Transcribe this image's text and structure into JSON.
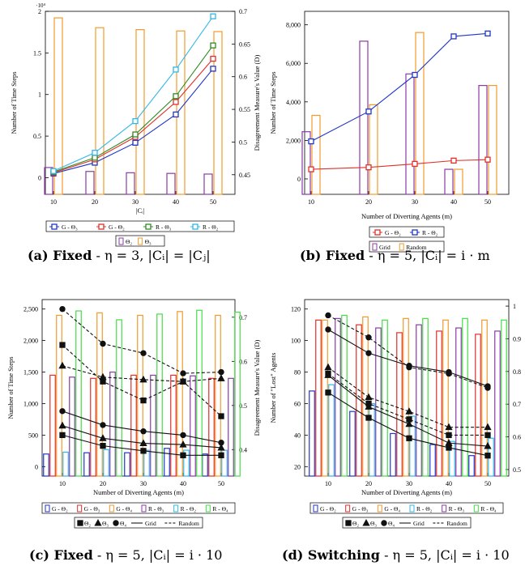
{
  "colors": {
    "blue": "#1f36c8",
    "red": "#e0302a",
    "green": "#2e8b24",
    "cyan": "#2fb7e8",
    "orange": "#f29a2b",
    "purple": "#8a3ba6",
    "bright_green": "#44dd44",
    "black": "#111111"
  },
  "captions": [
    {
      "label": "(a) Fixed",
      "rest": "- η = 3, |Cᵢ| = |Cⱼ|"
    },
    {
      "label": "(b) Fixed",
      "rest": "- η = 5, |Cᵢ| = i · m"
    },
    {
      "label": "(c) Fixed",
      "rest": "- η = 5, |Cᵢ| = i · 10"
    },
    {
      "label": "(d) Switching",
      "rest": "- η = 5, |Cᵢ| = i · 10"
    }
  ],
  "chart_data": [
    {
      "id": "a",
      "type": "bar+line",
      "categories": [
        10,
        20,
        30,
        40,
        50
      ],
      "xlabel": "|Cᵢ|",
      "ylabel": "Number of Time Steps",
      "ylabel_right": "Disagreement Measure's Value (D)",
      "y_multiplier": "·10⁴",
      "ylim": [
        -0.2,
        2.0
      ],
      "yticks": [
        0,
        0.5,
        1,
        1.5,
        2
      ],
      "ytick_labels": [
        "0",
        "0.5",
        "1",
        "1.5",
        "2"
      ],
      "y2lim": [
        0.42,
        0.7
      ],
      "y2ticks": [
        0.45,
        0.5,
        0.55,
        0.6,
        0.65,
        0.7
      ],
      "y2tick_labels": [
        "0.45",
        "0.5",
        "0.55",
        "0.6",
        "0.65",
        "0.7"
      ],
      "bars": [
        {
          "name": "Θ₂",
          "color": "purple",
          "values": [
            0.461,
            0.455,
            0.453,
            0.452,
            0.451
          ]
        },
        {
          "name": "Θ₃",
          "color": "orange",
          "values": [
            0.69,
            0.675,
            0.672,
            0.67,
            0.669
          ]
        }
      ],
      "lines": [
        {
          "name": "G - Θ₃",
          "color": "blue",
          "marker": "square",
          "values": [
            0.05,
            0.18,
            0.42,
            0.76,
            1.31
          ]
        },
        {
          "name": "G - Θ₂",
          "color": "red",
          "marker": "square",
          "values": [
            0.06,
            0.22,
            0.49,
            0.91,
            1.43
          ]
        },
        {
          "name": "R - Θ₃",
          "color": "green",
          "marker": "square",
          "values": [
            0.07,
            0.24,
            0.52,
            0.98,
            1.59
          ]
        },
        {
          "name": "R - Θ₂",
          "color": "cyan",
          "marker": "square",
          "values": [
            0.08,
            0.3,
            0.68,
            1.3,
            1.94
          ]
        }
      ],
      "legend_rows": [
        [
          "G - Θ₃",
          "G - Θ₂",
          "R - Θ₃",
          "R - Θ₂"
        ],
        [
          "Θ₂",
          "Θ₃"
        ]
      ]
    },
    {
      "id": "b",
      "type": "bar+line",
      "categories": [
        10,
        20,
        30,
        40,
        50
      ],
      "xlabel": "Number of Diverting Agents (m)",
      "ylabel": "Number of Time Steps",
      "ylim": [
        -800,
        8700
      ],
      "yticks": [
        0,
        2000,
        4000,
        6000,
        8000
      ],
      "ytick_labels": [
        "0",
        "2,000",
        "4,000",
        "6,000",
        "8,000"
      ],
      "bars": [
        {
          "name": "Grid",
          "color": "purple",
          "values": [
            2450,
            7150,
            5450,
            500,
            4850
          ]
        },
        {
          "name": "Random",
          "color": "orange",
          "values": [
            3300,
            3850,
            7600,
            500,
            4850
          ]
        }
      ],
      "lines": [
        {
          "name": "G - Θ₂",
          "color": "red",
          "marker": "square",
          "values": [
            500,
            600,
            780,
            950,
            1000
          ]
        },
        {
          "name": "R - Θ₂",
          "color": "blue",
          "marker": "square",
          "values": [
            1950,
            3500,
            5400,
            7400,
            7550
          ]
        }
      ],
      "legend_rows": [
        [
          "G - Θ₂",
          "R - Θ₂"
        ],
        [
          "Grid",
          "Random"
        ]
      ]
    },
    {
      "id": "c",
      "type": "bar+line",
      "categories": [
        10,
        20,
        30,
        40,
        50
      ],
      "xlabel": "Number of Diverting Agents (m)",
      "ylabel": "Number of Time Steps",
      "ylabel_right": "Disagreement Measure's Value (D)",
      "ylim": [
        -150,
        2650
      ],
      "yticks": [
        0,
        500,
        1000,
        1500,
        2000,
        2500
      ],
      "ytick_labels": [
        "0",
        "500",
        "1,000",
        "1,500",
        "2,000",
        "2,500"
      ],
      "y2lim": [
        0.34,
        0.74
      ],
      "y2ticks": [
        0.4,
        0.5,
        0.6,
        0.7
      ],
      "y2tick_labels": [
        "0.4",
        "0.5",
        "0.6",
        "0.7"
      ],
      "bars": [
        {
          "name": "G - Θ₂",
          "color": "blue",
          "values": [
            200,
            220,
            220,
            290,
            200
          ]
        },
        {
          "name": "G - Θ₃",
          "color": "red",
          "values": [
            1450,
            1400,
            1450,
            1450,
            1400
          ]
        },
        {
          "name": "G - Θ₄",
          "color": "orange",
          "values": [
            2400,
            2440,
            2400,
            2460,
            2400
          ]
        },
        {
          "name": "R - Θ₂",
          "color": "cyan",
          "values": [
            230,
            270,
            260,
            260,
            260
          ]
        },
        {
          "name": "R - Θ₃",
          "color": "purple",
          "values": [
            1420,
            1500,
            1450,
            1440,
            1400
          ]
        },
        {
          "name": "R - Θ₄",
          "color": "bright_green",
          "values": [
            2470,
            2330,
            2420,
            2480,
            2450
          ]
        }
      ],
      "lines": [
        {
          "name": "Grid Θ₂",
          "style": "solid",
          "marker": "square",
          "values": [
            500,
            330,
            250,
            180,
            180
          ]
        },
        {
          "name": "Grid Θ₃",
          "style": "solid",
          "marker": "triangle",
          "values": [
            650,
            450,
            370,
            350,
            300
          ]
        },
        {
          "name": "Grid Θ₄",
          "style": "solid",
          "marker": "circle",
          "values": [
            880,
            660,
            560,
            500,
            380
          ]
        },
        {
          "name": "Random Θ₂",
          "style": "dashed",
          "marker": "square",
          "values": [
            1930,
            1350,
            1050,
            1350,
            800
          ]
        },
        {
          "name": "Random Θ₃",
          "style": "dashed",
          "marker": "triangle",
          "values": [
            1600,
            1420,
            1380,
            1350,
            1400
          ]
        },
        {
          "name": "Random Θ₄",
          "style": "dashed",
          "marker": "circle",
          "values": [
            2500,
            1950,
            1800,
            1480,
            1500
          ]
        }
      ],
      "legend_rows": [
        [
          "G - Θ₂",
          "G - Θ₃",
          "G - Θ₄",
          "R - Θ₃",
          "R - Θ₂",
          "R - Θ₄"
        ],
        [
          "Θ₂",
          "Θ₃",
          "Θ₄",
          "Grid",
          "Random"
        ]
      ]
    },
    {
      "id": "d",
      "type": "bar+line",
      "categories": [
        10,
        20,
        30,
        40,
        50
      ],
      "xlabel": "Number of Diverting Agents (m)",
      "ylabel": "Number of \"Lost\" Agents",
      "ylim": [
        14,
        126
      ],
      "yticks": [
        20,
        40,
        60,
        80,
        100,
        120
      ],
      "ytick_labels": [
        "20",
        "40",
        "60",
        "80",
        "100",
        "120"
      ],
      "y2lim": [
        0.48,
        1.02
      ],
      "y2ticks": [
        0.5,
        0.6,
        0.7,
        0.8,
        0.9,
        1
      ],
      "y2tick_labels": [
        "0.5",
        "0.6",
        "0.7",
        "0.8",
        "0.9",
        "1"
      ],
      "bars": [
        {
          "name": "G - Θ₂",
          "color": "blue",
          "values": [
            68,
            55,
            41,
            34,
            27
          ]
        },
        {
          "name": "G - Θ₃",
          "color": "red",
          "values": [
            113,
            110,
            105,
            106,
            104
          ]
        },
        {
          "name": "G - Θ₄",
          "color": "orange",
          "values": [
            113,
            115,
            114,
            113,
            113
          ]
        },
        {
          "name": "R - Θ₂",
          "color": "cyan",
          "values": [
            72,
            60,
            52,
            36,
            38
          ]
        },
        {
          "name": "R - Θ₃",
          "color": "purple",
          "values": [
            114,
            108,
            110,
            108,
            106
          ]
        },
        {
          "name": "R - Θ₄",
          "color": "bright_green",
          "values": [
            116,
            113,
            114,
            114,
            113
          ]
        }
      ],
      "lines": [
        {
          "name": "Grid Θ₂",
          "style": "solid",
          "marker": "square",
          "values": [
            67,
            51,
            38,
            32,
            27
          ]
        },
        {
          "name": "Grid Θ₃",
          "style": "solid",
          "marker": "triangle",
          "values": [
            78,
            58,
            47,
            35,
            33
          ]
        },
        {
          "name": "Grid Θ₄",
          "style": "solid",
          "marker": "circle",
          "values": [
            107,
            92,
            84,
            80,
            71
          ]
        },
        {
          "name": "Random Θ₂",
          "style": "dashed",
          "marker": "square",
          "values": [
            79,
            60,
            50,
            40,
            40
          ]
        },
        {
          "name": "Random Θ₃",
          "style": "dashed",
          "marker": "triangle",
          "values": [
            83,
            64,
            55,
            45,
            45
          ]
        },
        {
          "name": "Random Θ₄",
          "style": "dashed",
          "marker": "circle",
          "values": [
            116,
            102,
            83,
            79,
            70
          ]
        }
      ],
      "legend_rows": [
        [
          "G - Θ₂",
          "G - Θ₃",
          "G - Θ₄",
          "R - Θ₂",
          "R - Θ₃",
          "R - Θ₄"
        ],
        [
          "Θ₂",
          "Θ₃",
          "Θ₄",
          "Grid",
          "Random"
        ]
      ]
    }
  ]
}
